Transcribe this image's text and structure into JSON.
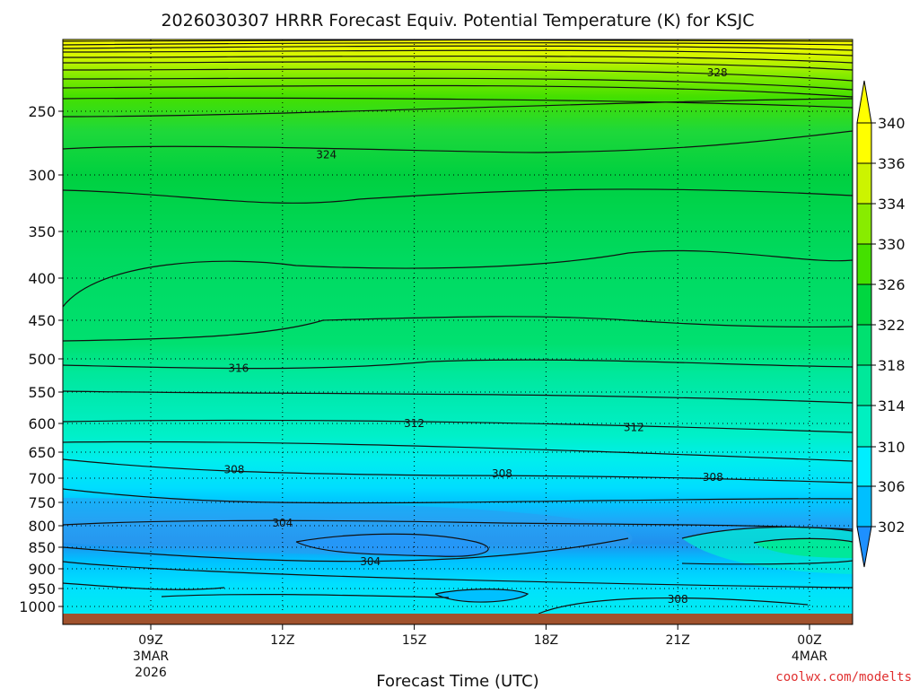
{
  "chart_data": {
    "type": "contour",
    "title": "2026030307 HRRR Forecast Equiv. Potential Temperature (K) for KSJC",
    "xlabel": "Forecast Time (UTC)",
    "ylabel": "",
    "credit": "coolwx.com/modelts",
    "x_ticks": [
      {
        "label": "09Z",
        "sub1": "3MAR",
        "sub2": "2026",
        "hour": 9
      },
      {
        "label": "12Z",
        "sub1": "",
        "sub2": "",
        "hour": 12
      },
      {
        "label": "15Z",
        "sub1": "",
        "sub2": "",
        "hour": 15
      },
      {
        "label": "18Z",
        "sub1": "",
        "sub2": "",
        "hour": 18
      },
      {
        "label": "21Z",
        "sub1": "",
        "sub2": "",
        "hour": 21
      },
      {
        "label": "00Z",
        "sub1": "4MAR",
        "sub2": "",
        "hour": 24
      }
    ],
    "x_range_hours": [
      7,
      25
    ],
    "y_ticks": [
      {
        "label": "250",
        "value": 250
      },
      {
        "label": "300",
        "value": 300
      },
      {
        "label": "350",
        "value": 350
      },
      {
        "label": "400",
        "value": 400
      },
      {
        "label": "450",
        "value": 450
      },
      {
        "label": "500",
        "value": 500
      },
      {
        "label": "550",
        "value": 550
      },
      {
        "label": "600",
        "value": 600
      },
      {
        "label": "650",
        "value": 650
      },
      {
        "label": "700",
        "value": 700
      },
      {
        "label": "750",
        "value": 750
      },
      {
        "label": "800",
        "value": 800
      },
      {
        "label": "850",
        "value": 850
      },
      {
        "label": "900",
        "value": 900
      },
      {
        "label": "950",
        "value": 950
      },
      {
        "label": "1000",
        "value": 1000
      }
    ],
    "y_range_hPa": [
      1020,
      200
    ],
    "grid": "dotted",
    "colorbar": {
      "placement": "right",
      "labels": [
        "302",
        "306",
        "310",
        "314",
        "318",
        "322",
        "326",
        "330",
        "334",
        "336",
        "340"
      ],
      "levels": [
        302,
        306,
        310,
        314,
        318,
        322,
        326,
        330,
        334,
        336,
        340
      ],
      "colors": [
        "#1e90ff",
        "#00bfff",
        "#00eeff",
        "#00f0c0",
        "#00e89a",
        "#00e070",
        "#00d640",
        "#44e000",
        "#88ec00",
        "#ccf400",
        "#ffff00"
      ],
      "under_color": "#1e90ff",
      "over_color": "#ffff00"
    },
    "contour_labels": [
      {
        "text": "328",
        "hour": 21.9,
        "p": 224
      },
      {
        "text": "324",
        "hour": 13.0,
        "p": 283
      },
      {
        "text": "316",
        "hour": 11.0,
        "p": 514
      },
      {
        "text": "312",
        "hour": 15.0,
        "p": 600
      },
      {
        "text": "312",
        "hour": 20.0,
        "p": 607
      },
      {
        "text": "308",
        "hour": 10.9,
        "p": 683
      },
      {
        "text": "308",
        "hour": 17.0,
        "p": 691
      },
      {
        "text": "308",
        "hour": 21.8,
        "p": 698
      },
      {
        "text": "304",
        "hour": 12.0,
        "p": 794
      },
      {
        "text": "304",
        "hour": 14.0,
        "p": 883
      },
      {
        "text": "308",
        "hour": 21.0,
        "p": 980
      }
    ],
    "surface_color": "#a0522d"
  }
}
